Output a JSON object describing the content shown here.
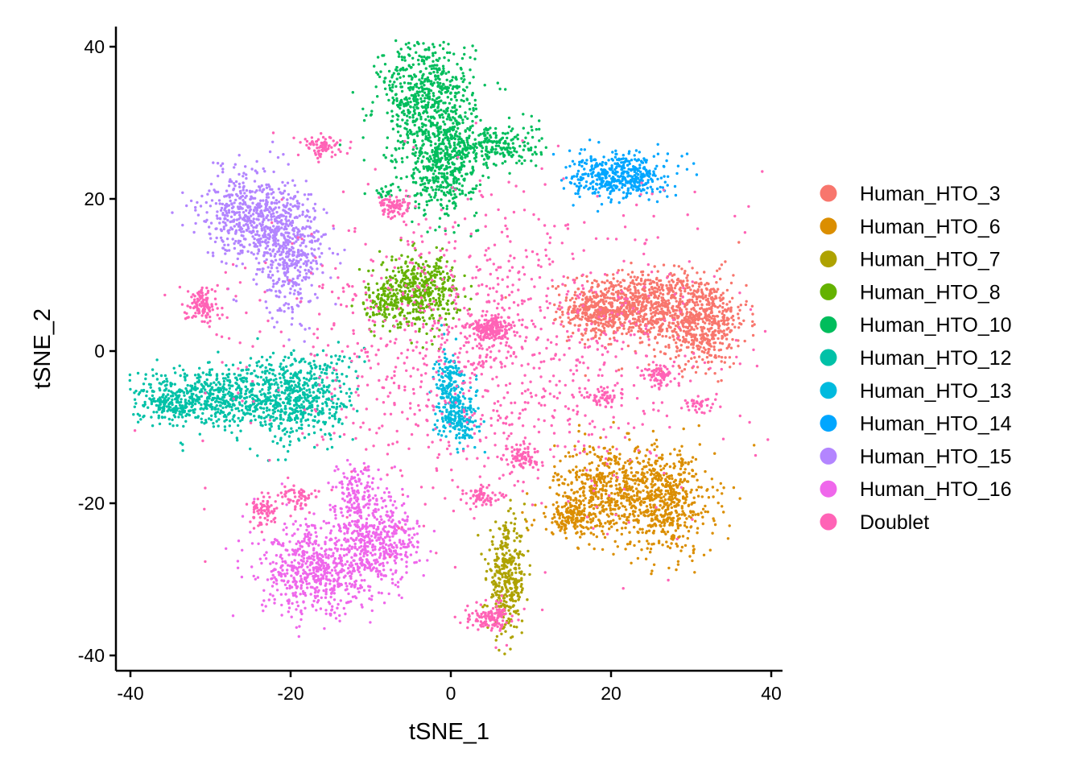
{
  "chart_data": {
    "type": "scatter",
    "xlabel": "tSNE_1",
    "ylabel": "tSNE_2",
    "xlim": [
      -42,
      41
    ],
    "ylim": [
      -42,
      43
    ],
    "x_ticks": [
      "-40",
      "-20",
      "0",
      "20",
      "40"
    ],
    "y_ticks": [
      "40",
      "20",
      "0",
      "-20",
      "-40"
    ],
    "grid": false,
    "legend_position": "right",
    "series": [
      {
        "name": "Human_HTO_3",
        "color": "#F8766D",
        "centroid": [
          27,
          5
        ]
      },
      {
        "name": "Human_HTO_6",
        "color": "#DB8E00",
        "centroid": [
          22,
          -20
        ]
      },
      {
        "name": "Human_HTO_7",
        "color": "#AEA200",
        "centroid": [
          7,
          -30
        ]
      },
      {
        "name": "Human_HTO_8",
        "color": "#64B200",
        "centroid": [
          -4,
          8
        ]
      },
      {
        "name": "Human_HTO_10",
        "color": "#00BD5C",
        "centroid": [
          -2,
          29
        ]
      },
      {
        "name": "Human_HTO_12",
        "color": "#00C1A7",
        "centroid": [
          -25,
          -6
        ]
      },
      {
        "name": "Human_HTO_13",
        "color": "#00BADE",
        "centroid": [
          0,
          -6
        ]
      },
      {
        "name": "Human_HTO_14",
        "color": "#00A6FF",
        "centroid": [
          21,
          23
        ]
      },
      {
        "name": "Human_HTO_15",
        "color": "#B385FF",
        "centroid": [
          -22,
          16
        ]
      },
      {
        "name": "Human_HTO_16",
        "color": "#EF67EB",
        "centroid": [
          -13,
          -28
        ]
      },
      {
        "name": "Doublet",
        "color": "#FF63B6",
        "centroid": [
          5,
          0
        ]
      }
    ]
  }
}
